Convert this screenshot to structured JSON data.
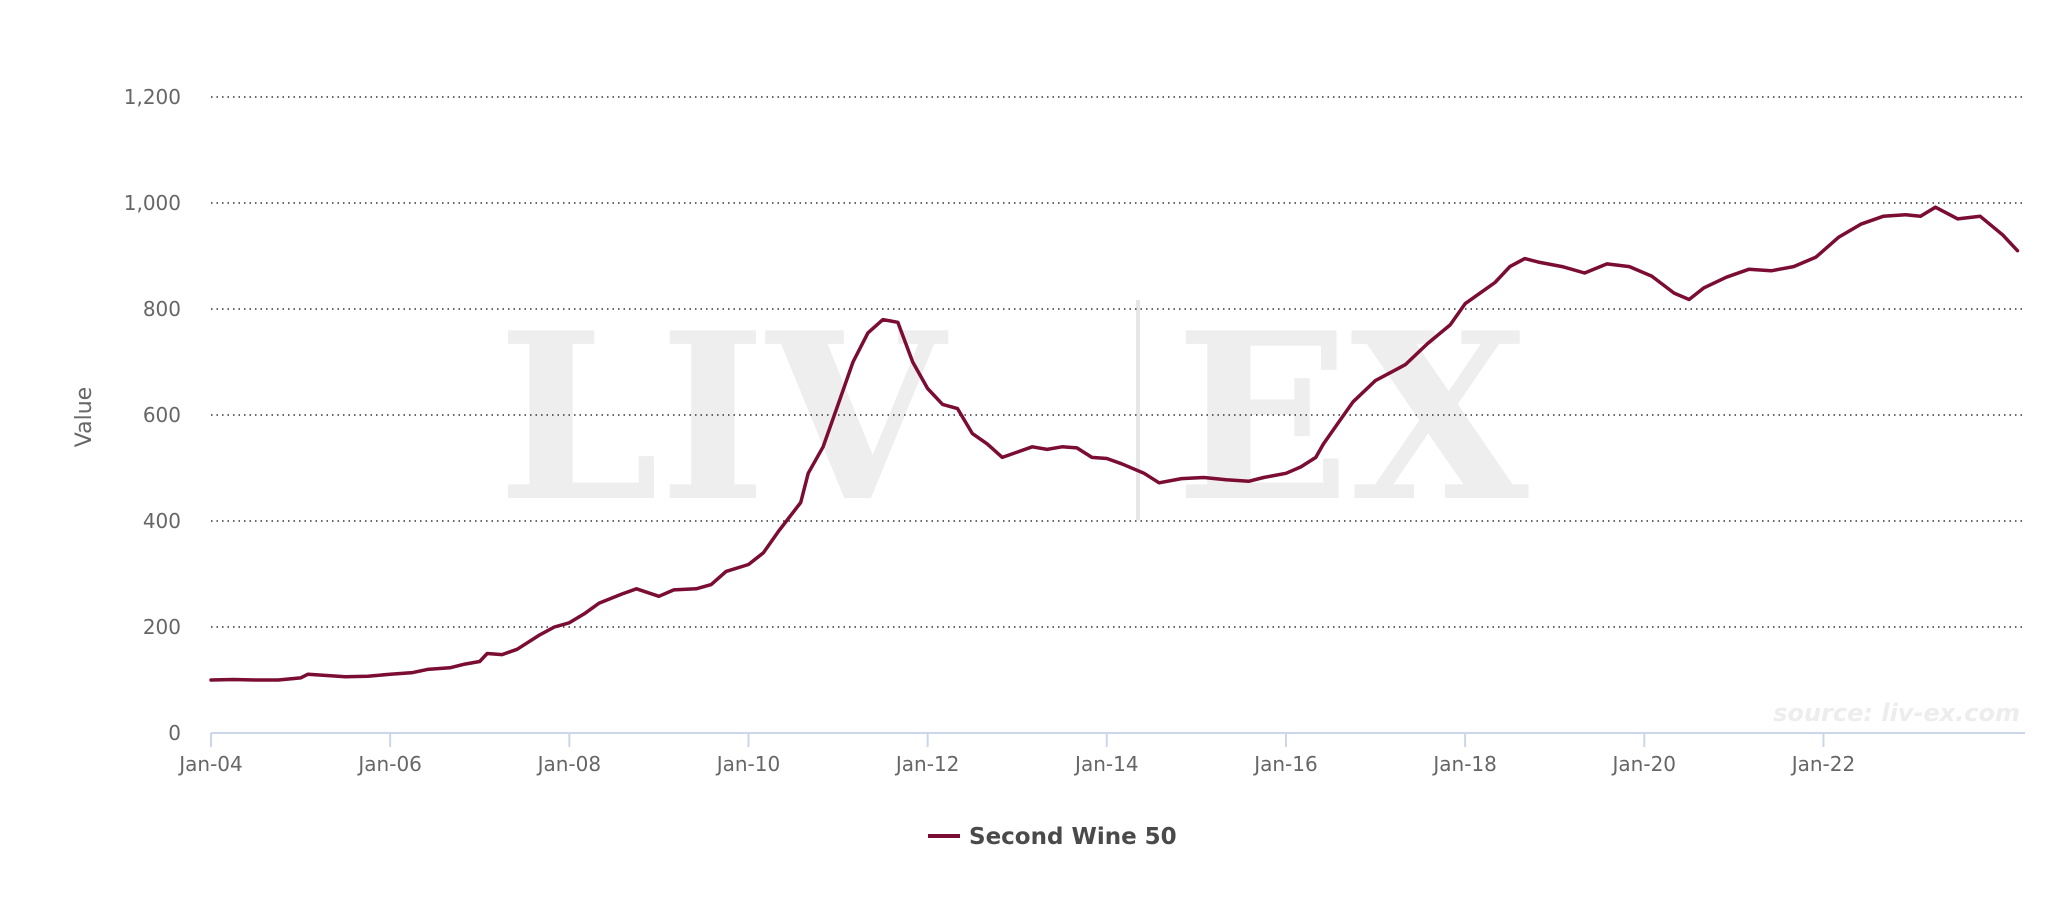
{
  "chart_data": {
    "type": "line",
    "title": "",
    "xlabel": "",
    "ylabel": "Value",
    "ylim": [
      0,
      1200
    ],
    "yticks": [
      0,
      200,
      400,
      600,
      800,
      1000,
      1200
    ],
    "ytick_labels": [
      "0",
      "200",
      "400",
      "600",
      "800",
      "1,000",
      "1,200"
    ],
    "xtick_labels": [
      "Jan-04",
      "Jan-06",
      "Jan-08",
      "Jan-10",
      "Jan-12",
      "Jan-14",
      "Jan-16",
      "Jan-18",
      "Jan-20",
      "Jan-22"
    ],
    "grid": "horizontal-dotted",
    "legend": "bottom-center",
    "color": "#7b0c33",
    "watermark": "LIV|EX",
    "source": "source: liv-ex.com",
    "series": [
      {
        "name": "Second Wine 50",
        "points": [
          [
            "2004-01",
            100
          ],
          [
            "2004-04",
            101
          ],
          [
            "2004-07",
            100
          ],
          [
            "2004-10",
            100
          ],
          [
            "2005-01",
            104
          ],
          [
            "2005-02",
            111
          ],
          [
            "2005-04",
            109
          ],
          [
            "2005-07",
            106
          ],
          [
            "2005-10",
            107
          ],
          [
            "2006-01",
            111
          ],
          [
            "2006-04",
            114
          ],
          [
            "2006-06",
            120
          ],
          [
            "2006-09",
            123
          ],
          [
            "2006-11",
            130
          ],
          [
            "2007-01",
            135
          ],
          [
            "2007-02",
            150
          ],
          [
            "2007-04",
            148
          ],
          [
            "2007-06",
            158
          ],
          [
            "2007-09",
            185
          ],
          [
            "2007-11",
            200
          ],
          [
            "2008-01",
            208
          ],
          [
            "2008-03",
            225
          ],
          [
            "2008-05",
            245
          ],
          [
            "2008-08",
            262
          ],
          [
            "2008-10",
            272
          ],
          [
            "2009-01",
            258
          ],
          [
            "2009-03",
            270
          ],
          [
            "2009-06",
            272
          ],
          [
            "2009-08",
            280
          ],
          [
            "2009-10",
            305
          ],
          [
            "2010-01",
            318
          ],
          [
            "2010-03",
            340
          ],
          [
            "2010-05",
            380
          ],
          [
            "2010-08",
            435
          ],
          [
            "2010-09",
            490
          ],
          [
            "2010-11",
            540
          ],
          [
            "2011-01",
            620
          ],
          [
            "2011-03",
            700
          ],
          [
            "2011-05",
            755
          ],
          [
            "2011-07",
            780
          ],
          [
            "2011-09",
            775
          ],
          [
            "2011-11",
            700
          ],
          [
            "2012-01",
            650
          ],
          [
            "2012-03",
            620
          ],
          [
            "2012-05",
            612
          ],
          [
            "2012-07",
            565
          ],
          [
            "2012-09",
            545
          ],
          [
            "2012-11",
            520
          ],
          [
            "2013-01",
            530
          ],
          [
            "2013-03",
            540
          ],
          [
            "2013-05",
            535
          ],
          [
            "2013-07",
            540
          ],
          [
            "2013-09",
            538
          ],
          [
            "2013-11",
            520
          ],
          [
            "2014-01",
            518
          ],
          [
            "2014-03",
            508
          ],
          [
            "2014-06",
            490
          ],
          [
            "2014-08",
            472
          ],
          [
            "2014-11",
            480
          ],
          [
            "2015-02",
            482
          ],
          [
            "2015-05",
            478
          ],
          [
            "2015-08",
            475
          ],
          [
            "2015-10",
            482
          ],
          [
            "2016-01",
            490
          ],
          [
            "2016-03",
            502
          ],
          [
            "2016-05",
            520
          ],
          [
            "2016-06",
            545
          ],
          [
            "2016-08",
            585
          ],
          [
            "2016-10",
            625
          ],
          [
            "2017-01",
            665
          ],
          [
            "2017-03",
            680
          ],
          [
            "2017-05",
            695
          ],
          [
            "2017-08",
            735
          ],
          [
            "2017-11",
            770
          ],
          [
            "2018-01",
            810
          ],
          [
            "2018-03",
            830
          ],
          [
            "2018-05",
            850
          ],
          [
            "2018-07",
            880
          ],
          [
            "2018-09",
            895
          ],
          [
            "2018-11",
            888
          ],
          [
            "2019-02",
            880
          ],
          [
            "2019-05",
            868
          ],
          [
            "2019-08",
            885
          ],
          [
            "2019-11",
            880
          ],
          [
            "2020-02",
            862
          ],
          [
            "2020-05",
            830
          ],
          [
            "2020-07",
            818
          ],
          [
            "2020-09",
            840
          ],
          [
            "2020-12",
            860
          ],
          [
            "2021-03",
            875
          ],
          [
            "2021-06",
            872
          ],
          [
            "2021-09",
            880
          ],
          [
            "2021-12",
            898
          ],
          [
            "2022-03",
            935
          ],
          [
            "2022-06",
            960
          ],
          [
            "2022-09",
            975
          ],
          [
            "2022-12",
            978
          ],
          [
            "2023-02",
            975
          ],
          [
            "2023-04",
            992
          ],
          [
            "2023-07",
            970
          ],
          [
            "2023-10",
            975
          ],
          [
            "2024-01",
            940
          ],
          [
            "2024-03",
            910
          ]
        ]
      }
    ]
  }
}
